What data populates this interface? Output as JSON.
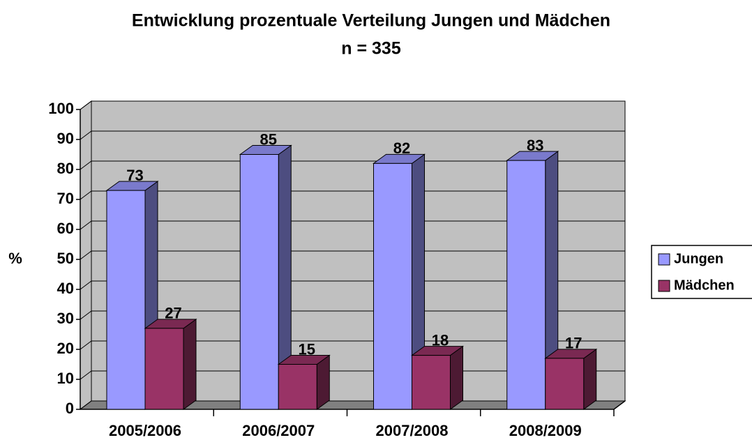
{
  "chart_data": {
    "type": "bar3d",
    "title": "Entwicklung prozentuale Verteilung Jungen und Mädchen",
    "subtitle": "n = 335",
    "y_label": "%",
    "categories": [
      "2005/2006",
      "2006/2007",
      "2007/2008",
      "2008/2009"
    ],
    "series": [
      {
        "name": "Jungen",
        "color": "#9999ff",
        "values": [
          73,
          85,
          82,
          83
        ]
      },
      {
        "name": "Mädchen",
        "color": "#993366",
        "values": [
          27,
          15,
          18,
          17
        ]
      }
    ],
    "ylim": [
      0,
      100
    ],
    "yticks": [
      0,
      10,
      20,
      30,
      40,
      50,
      60,
      70,
      80,
      90,
      100
    ],
    "grid": true,
    "legend": "right"
  }
}
